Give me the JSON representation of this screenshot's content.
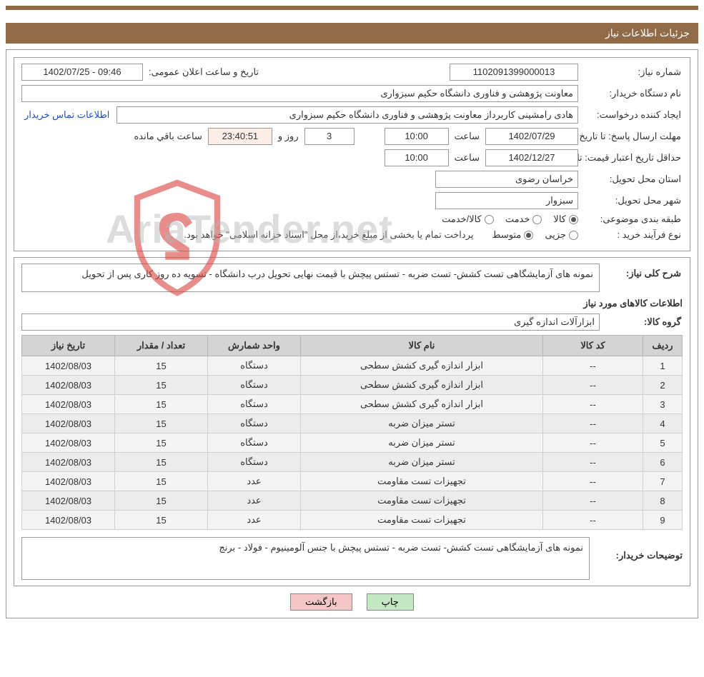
{
  "header": {
    "title": "جزئیات اطلاعات نیاز"
  },
  "form": {
    "need_number_label": "شماره نیاز:",
    "need_number": "1102091399000013",
    "announce_label": "تاریخ و ساعت اعلان عمومی:",
    "announce_value": "1402/07/25 - 09:46",
    "buyer_org_label": "نام دستگاه خریدار:",
    "buyer_org": "معاونت پژوهشی و فناوری دانشگاه حکیم سبزواری",
    "requester_label": "ایجاد کننده درخواست:",
    "requester": "هادی رامشینی کاربرداز معاونت پژوهشی و فناوری دانشگاه حکیم سبزواری",
    "contact_link": "اطلاعات تماس خریدار",
    "reply_deadline_label": "مهلت ارسال پاسخ: تا تاریخ:",
    "reply_deadline_date": "1402/07/29",
    "time_label": "ساعت",
    "reply_deadline_time": "10:00",
    "days_label": "روز و",
    "days_value": "3",
    "countdown": "23:40:51",
    "remaining_label": "ساعت باقي مانده",
    "price_valid_label": "حداقل تاریخ اعتبار قیمت: تا تاریخ:",
    "price_valid_date": "1402/12/27",
    "price_valid_time": "10:00",
    "province_label": "استان محل تحویل:",
    "province": "خراسان رضوی",
    "city_label": "شهر محل تحویل:",
    "city": "سبزوار",
    "category_label": "طبقه بندی موضوعی:",
    "cat_goods": "کالا",
    "cat_service": "خدمت",
    "cat_goods_service": "کالا/خدمت",
    "purchase_type_label": "نوع فرآیند خرید :",
    "ptype_small": "جزیی",
    "ptype_medium": "متوسط",
    "purchase_note": "پرداخت تمام یا بخشی از مبلغ خرید،از محل \"اسناد خزانه اسلامی\" خواهد بود.",
    "summary_label": "شرح کلی نیاز:",
    "summary": "نمونه های آزمایشگاهی تست کشش- تست ضربه - تستس پیچش با قیمت نهایی تحویل درب دانشگاه - تسویه ده روز کاری پس از تحویل",
    "goods_info_title": "اطلاعات کالاهای مورد نیاز",
    "goods_group_label": "گروه کالا:",
    "goods_group": "ابزارآلات اندازه گیری",
    "buyer_notes_label": "توضیحات خریدار:",
    "buyer_notes": "نمونه های آزمایشگاهی تست کشش- تست ضربه - تستس پیچش با جنس آلومینیوم - فولاد - برنج"
  },
  "table": {
    "columns": {
      "row": "ردیف",
      "code": "کد کالا",
      "name": "نام کالا",
      "unit": "واحد شمارش",
      "qty": "تعداد / مقدار",
      "date": "تاریخ نیاز"
    },
    "rows": [
      {
        "row": "1",
        "code": "--",
        "name": "ابزار اندازه گیری کشش سطحی",
        "unit": "دستگاه",
        "qty": "15",
        "date": "1402/08/03"
      },
      {
        "row": "2",
        "code": "--",
        "name": "ابزار اندازه گیری کشش سطحی",
        "unit": "دستگاه",
        "qty": "15",
        "date": "1402/08/03"
      },
      {
        "row": "3",
        "code": "--",
        "name": "ابزار اندازه گیری کشش سطحی",
        "unit": "دستگاه",
        "qty": "15",
        "date": "1402/08/03"
      },
      {
        "row": "4",
        "code": "--",
        "name": "تستر میزان ضربه",
        "unit": "دستگاه",
        "qty": "15",
        "date": "1402/08/03"
      },
      {
        "row": "5",
        "code": "--",
        "name": "تستر میزان ضربه",
        "unit": "دستگاه",
        "qty": "15",
        "date": "1402/08/03"
      },
      {
        "row": "6",
        "code": "--",
        "name": "تستر میزان ضربه",
        "unit": "دستگاه",
        "qty": "15",
        "date": "1402/08/03"
      },
      {
        "row": "7",
        "code": "--",
        "name": "تجهیزات تست مقاومت",
        "unit": "عدد",
        "qty": "15",
        "date": "1402/08/03"
      },
      {
        "row": "8",
        "code": "--",
        "name": "تجهیزات تست مقاومت",
        "unit": "عدد",
        "qty": "15",
        "date": "1402/08/03"
      },
      {
        "row": "9",
        "code": "--",
        "name": "تجهیزات تست مقاومت",
        "unit": "عدد",
        "qty": "15",
        "date": "1402/08/03"
      }
    ]
  },
  "buttons": {
    "print": "چاپ",
    "back": "بازگشت"
  },
  "watermark": "AriaTender.net",
  "colors": {
    "header_bg": "#916b47",
    "th_bg": "#d4d4d4",
    "td_bg": "#f4f4f4",
    "btn_print": "#c3e8c3",
    "btn_back": "#f5c6c6",
    "link": "#1a4fc0",
    "shield": "#d9433e"
  }
}
